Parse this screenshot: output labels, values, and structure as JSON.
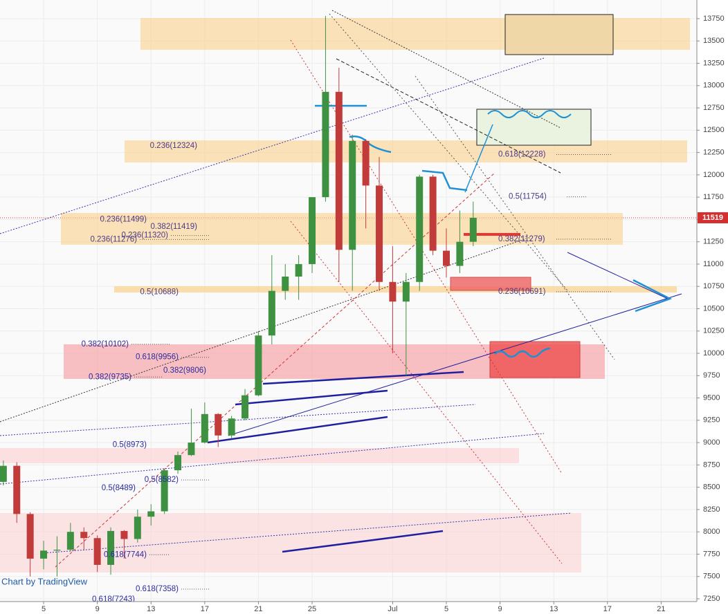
{
  "chart_data": {
    "type": "candlestick",
    "x": [
      2,
      3,
      4,
      5,
      6,
      7,
      8,
      9,
      10,
      11,
      12,
      13,
      14,
      15,
      16,
      17,
      18,
      19,
      20,
      21,
      22,
      23,
      24,
      25,
      26,
      27,
      28,
      29,
      30,
      31,
      32,
      33,
      34,
      35,
      36,
      37
    ],
    "open": [
      8560,
      8740,
      8200,
      7700,
      7790,
      7800,
      8000,
      7930,
      7630,
      8010,
      7920,
      8170,
      8230,
      8690,
      8860,
      9000,
      9320,
      9080,
      9270,
      9530,
      10200,
      10700,
      10860,
      11000,
      11750,
      12930,
      11160,
      12380,
      11880,
      10800,
      10580,
      10800,
      11980,
      11150,
      10980,
      11250
    ],
    "high": [
      8800,
      8780,
      8220,
      7900,
      7950,
      8100,
      8050,
      7960,
      8050,
      8020,
      8250,
      8310,
      8700,
      8900,
      9380,
      9450,
      9330,
      9300,
      9600,
      10250,
      11100,
      11000,
      11100,
      11750,
      13780,
      13200,
      12450,
      12400,
      12200,
      11200,
      10900,
      12000,
      12000,
      11400,
      11600,
      11700
    ],
    "low": [
      8520,
      8100,
      7500,
      7580,
      7500,
      7780,
      7800,
      7550,
      7520,
      7700,
      7880,
      8070,
      8200,
      8650,
      8850,
      8990,
      8950,
      9050,
      9250,
      9520,
      10100,
      10600,
      10600,
      10900,
      11700,
      10800,
      10700,
      11400,
      10700,
      10000,
      9750,
      10700,
      11100,
      10850,
      10900,
      11200
    ],
    "close": [
      8740,
      8200,
      7700,
      7790,
      7800,
      8000,
      7930,
      7630,
      8010,
      7920,
      8170,
      8230,
      8690,
      8860,
      9000,
      9320,
      9080,
      9270,
      9530,
      10200,
      10700,
      10860,
      11000,
      11750,
      12930,
      11160,
      12380,
      11880,
      10800,
      10580,
      10800,
      11980,
      11150,
      10980,
      11250,
      11519
    ],
    "up_color": "#3f9142",
    "down_color": "#c23b3b",
    "xlim": [
      1.75,
      53.66
    ],
    "ylim": [
      7219,
      13959
    ],
    "xticks": [
      5,
      9,
      13,
      17,
      21,
      25,
      {
        "value": 31,
        "label": "Jul"
      },
      {
        "value": 35,
        "label": "5"
      },
      {
        "value": 39,
        "label": "9"
      },
      {
        "value": 43,
        "label": "13"
      },
      {
        "value": 47,
        "label": "17"
      },
      {
        "value": 51,
        "label": "21"
      }
    ],
    "yticks": [
      7250,
      7500,
      7750,
      8000,
      8250,
      8500,
      8750,
      9000,
      9250,
      9500,
      9750,
      10000,
      10250,
      10500,
      10750,
      11000,
      11250,
      11500,
      11750,
      12000,
      12250,
      12500,
      12750,
      13000,
      13250,
      13500,
      13750
    ],
    "grid": true,
    "last_price": 11519,
    "last_price_color": "#d32f2f",
    "annotations": [
      {
        "text": "0.236(12324)",
        "value": 12324
      },
      {
        "text": "0.618(12228)",
        "value": 12228
      },
      {
        "text": "0.5(11754)",
        "value": 11754
      },
      {
        "text": "0.236(11499)",
        "value": 11499
      },
      {
        "text": "0.382(11419)",
        "value": 11419
      },
      {
        "text": "0.236(11320)",
        "value": 11320
      },
      {
        "text": "0.236(11276)",
        "value": 11276
      },
      {
        "text": "0.382(11279)",
        "value": 11279
      },
      {
        "text": "0.5(10688)",
        "value": 10688
      },
      {
        "text": "0.236(10691)",
        "value": 10691
      },
      {
        "text": "0.382(10102)",
        "value": 10102
      },
      {
        "text": "0.618(9956)",
        "value": 9956
      },
      {
        "text": "0.382(9806)",
        "value": 9806
      },
      {
        "text": "0.382(9735)",
        "value": 9735
      },
      {
        "text": "0.5(8973)",
        "value": 8973
      },
      {
        "text": "0.5(8582)",
        "value": 8582
      },
      {
        "text": "0.5(8489)",
        "value": 8489
      },
      {
        "text": "0.618(7744)",
        "value": 7744
      },
      {
        "text": "0.618(7358)",
        "value": 7358
      },
      {
        "text": "0.618(7243)",
        "value": 7243
      }
    ],
    "watermark": "Chart by TradingView"
  }
}
